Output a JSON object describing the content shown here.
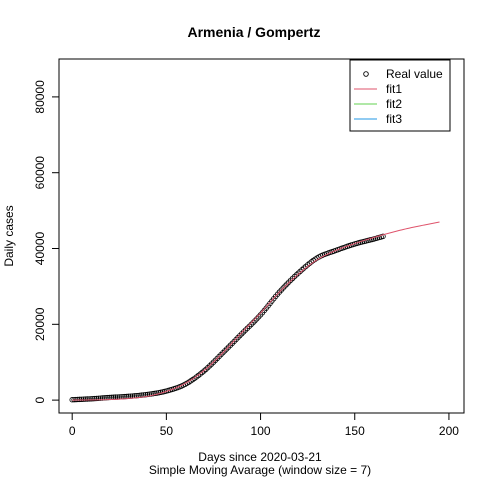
{
  "chart_data": {
    "type": "scatter",
    "title": "Armenia / Gompertz",
    "xlabel": "Days since 2020-03-21",
    "xlabel2": "Simple Moving Avarage (window size = 7)",
    "ylabel": "Daily cases",
    "xlim": [
      -7,
      208
    ],
    "ylim": [
      -3400,
      90000
    ],
    "x_ticks": [
      0,
      50,
      100,
      150,
      200
    ],
    "y_ticks": [
      0,
      20000,
      40000,
      60000,
      80000
    ],
    "legend": {
      "placement": "top-right",
      "entries": [
        {
          "label": "Real value",
          "kind": "point",
          "color": "#000000"
        },
        {
          "label": "fit1",
          "kind": "line",
          "color": "#DF536B"
        },
        {
          "label": "fit2",
          "kind": "line",
          "color": "#61D04F"
        },
        {
          "label": "fit3",
          "kind": "line",
          "color": "#2297E6"
        }
      ]
    },
    "series": [
      {
        "name": "Real value",
        "kind": "points",
        "color": "#000000",
        "x_range": [
          0,
          165
        ],
        "points": [
          [
            0,
            100
          ],
          [
            10,
            350
          ],
          [
            20,
            700
          ],
          [
            30,
            1000
          ],
          [
            40,
            1500
          ],
          [
            50,
            2400
          ],
          [
            60,
            4200
          ],
          [
            70,
            7700
          ],
          [
            80,
            12500
          ],
          [
            90,
            17500
          ],
          [
            100,
            22500
          ],
          [
            110,
            28500
          ],
          [
            120,
            33500
          ],
          [
            130,
            37500
          ],
          [
            140,
            39500
          ],
          [
            150,
            41200
          ],
          [
            160,
            42500
          ],
          [
            165,
            43200
          ]
        ]
      },
      {
        "name": "fit1",
        "kind": "line",
        "color": "#DF536B",
        "x_range": [
          0,
          195
        ],
        "points": [
          [
            0,
            0
          ],
          [
            20,
            150
          ],
          [
            30,
            450
          ],
          [
            40,
            1000
          ],
          [
            50,
            2300
          ],
          [
            60,
            4400
          ],
          [
            70,
            7800
          ],
          [
            80,
            12500
          ],
          [
            90,
            17800
          ],
          [
            100,
            23000
          ],
          [
            110,
            28500
          ],
          [
            120,
            33200
          ],
          [
            130,
            37000
          ],
          [
            140,
            39500
          ],
          [
            150,
            41300
          ],
          [
            160,
            42900
          ],
          [
            170,
            44300
          ],
          [
            180,
            45500
          ],
          [
            195,
            47000
          ]
        ]
      }
    ]
  }
}
